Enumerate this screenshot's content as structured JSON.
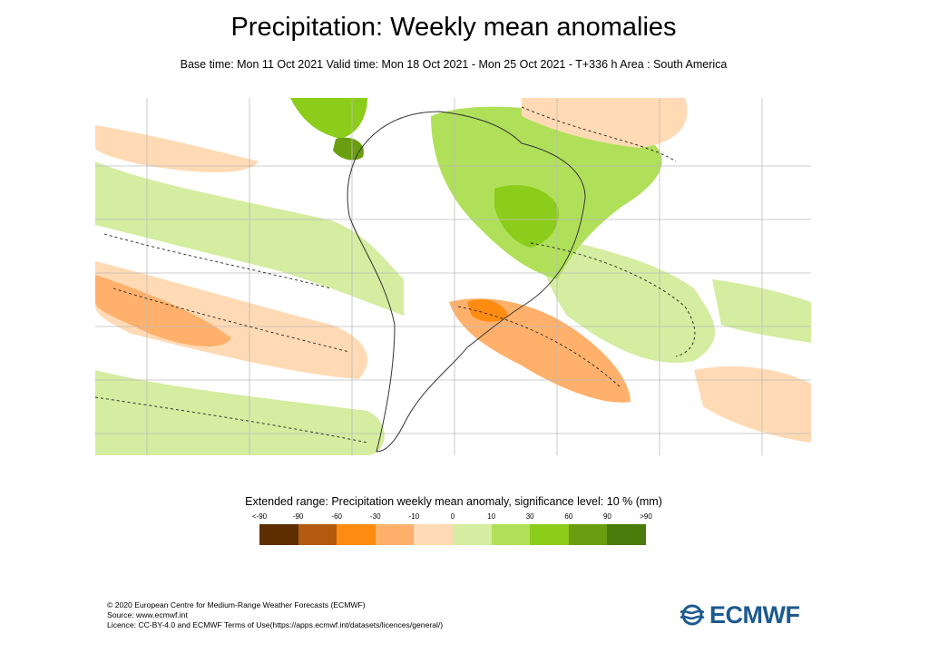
{
  "header": {
    "title": "Precipitation: Weekly mean anomalies",
    "subtitle": "Base time: Mon 11 Oct 2021 Valid time: Mon 18 Oct 2021 - Mon 25 Oct 2021 - T+336 h Area : South America"
  },
  "legend": {
    "title": "Extended range: Precipitation weekly mean anomaly, significance level: 10 % (mm)",
    "labels": [
      "<-90",
      "-90",
      "-60",
      "-30",
      "-10",
      "0",
      "10",
      "30",
      "60",
      "90",
      ">90"
    ],
    "colors": [
      "#5c2e00",
      "#b35a0f",
      "#ff8c10",
      "#ffb06a",
      "#ffdab4",
      "#ffffff",
      "#d4eda0",
      "#b0e05a",
      "#8ccc1a",
      "#6a9e10",
      "#4a7a0a"
    ]
  },
  "map": {
    "colors": {
      "dry_strong": "#ff8c10",
      "dry_mid": "#ffb06a",
      "dry_light": "#ffdab4",
      "wet_light": "#d4eda0",
      "wet_mid": "#b0e05a",
      "wet_strong": "#8ccc1a",
      "wet_vstrong": "#6a9e10"
    }
  },
  "footer": {
    "line1": "© 2020 European Centre for Medium-Range Weather Forecasts (ECMWF)",
    "line2": "Source: www.ecmwf.int",
    "line3": "Licence: CC-BY-4.0 and ECMWF Terms of Use(https://apps.ecmwf.int/datasets/licences/general/)"
  },
  "logo": {
    "text": "ECMWF",
    "icon": "ecmwf-logo-icon"
  }
}
